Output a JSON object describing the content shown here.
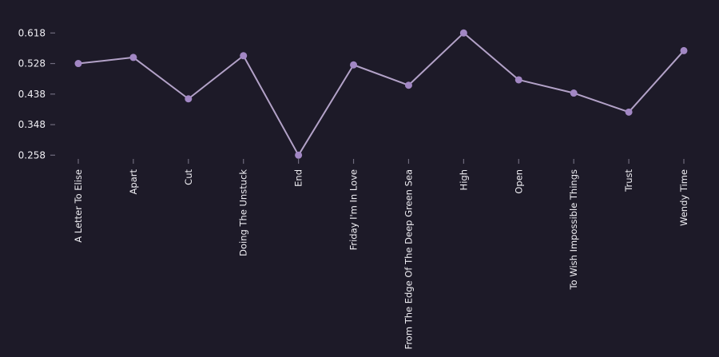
{
  "colors": {
    "background": "#1d1a28",
    "line": "#b3a2c8",
    "marker": "#a287c4",
    "tick": "#6f6b7d",
    "text": "#f0eff4"
  },
  "chart_data": {
    "type": "line",
    "title": "",
    "xlabel": "",
    "ylabel": "",
    "grid": false,
    "legend": null,
    "categories": [
      "A Letter To Elise",
      "Apart",
      "Cut",
      "Doing The Unstuck",
      "End",
      "Friday I'm In Love",
      "From The Edge Of The Deep Green Sea",
      "High",
      "Open",
      "To Wish Impossible Things",
      "Trust",
      "Wendy Time"
    ],
    "values": [
      0.528,
      0.546,
      0.424,
      0.551,
      0.258,
      0.524,
      0.464,
      0.618,
      0.48,
      0.441,
      0.385,
      0.566
    ],
    "yticks": [
      0.258,
      0.348,
      0.438,
      0.528,
      0.618
    ],
    "ytick_labels": [
      "0.258",
      "0.348",
      "0.438",
      "0.528",
      "0.618"
    ],
    "ylim": [
      0.22,
      0.66
    ]
  }
}
